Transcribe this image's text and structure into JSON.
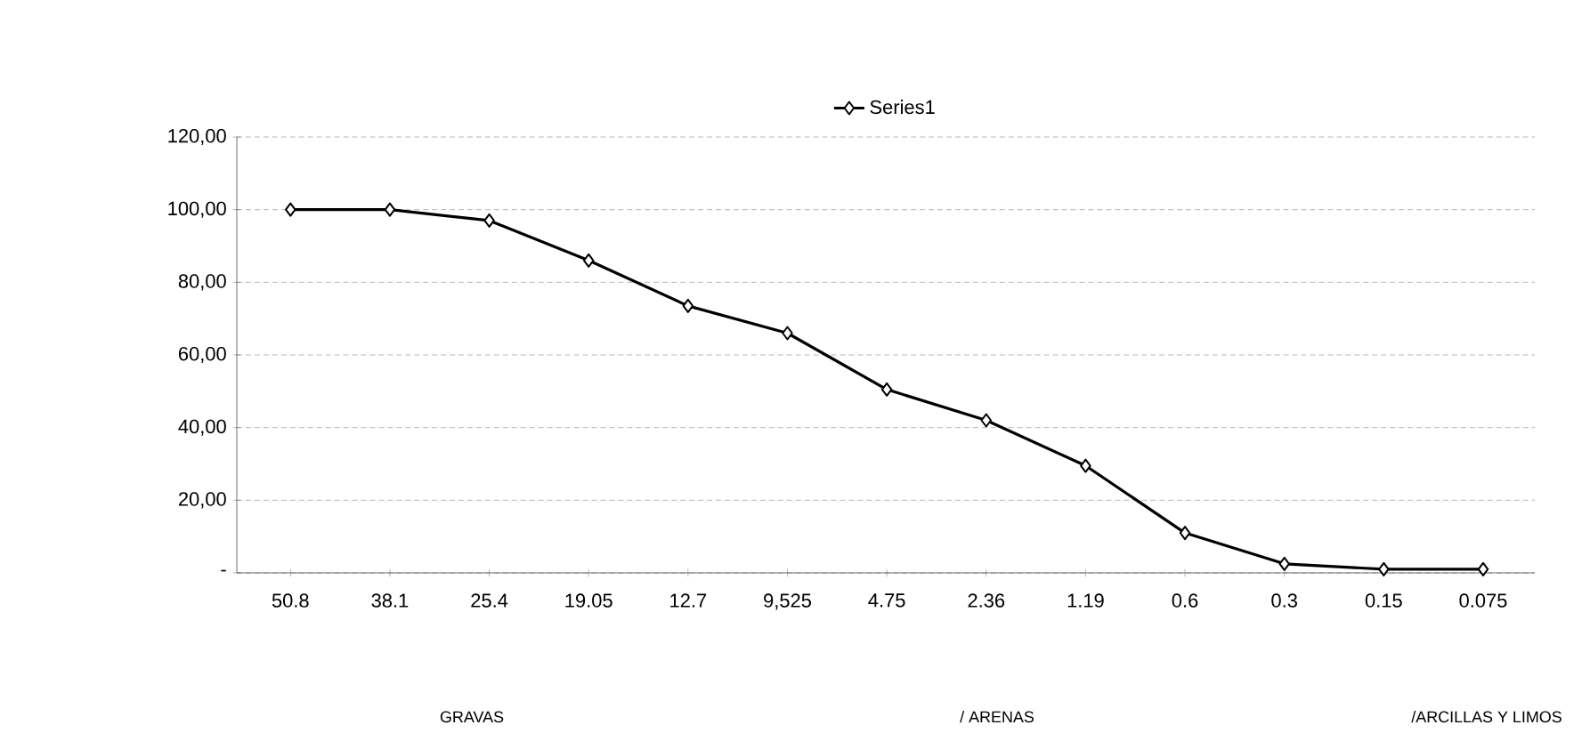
{
  "chart_data": {
    "type": "line",
    "categories": [
      "50.8",
      "38.1",
      "25.4",
      "19.05",
      "12.7",
      "9,525",
      "4.75",
      "2.36",
      "1.19",
      "0.6",
      "0.3",
      "0.15",
      "0.075"
    ],
    "series": [
      {
        "name": "Series1",
        "color": "#000000",
        "values": [
          100,
          100,
          97,
          86,
          73.5,
          66,
          50.5,
          42,
          29.5,
          11,
          2.5,
          1,
          1
        ]
      }
    ],
    "ylim": [
      0,
      120
    ],
    "yticks": [
      {
        "value": 0,
        "label": "-"
      },
      {
        "value": 20,
        "label": "20,00"
      },
      {
        "value": 40,
        "label": "40,00"
      },
      {
        "value": 60,
        "label": "60,00"
      },
      {
        "value": 80,
        "label": "80,00"
      },
      {
        "value": 100,
        "label": "100,00"
      },
      {
        "value": 120,
        "label": "120,00"
      }
    ],
    "grid": "y",
    "legend": "top",
    "marker": "diamond",
    "line_style": "solid",
    "annotations": [
      "GRAVAS",
      "/ ARENAS",
      "/ARCILLAS Y LIMOS"
    ]
  }
}
